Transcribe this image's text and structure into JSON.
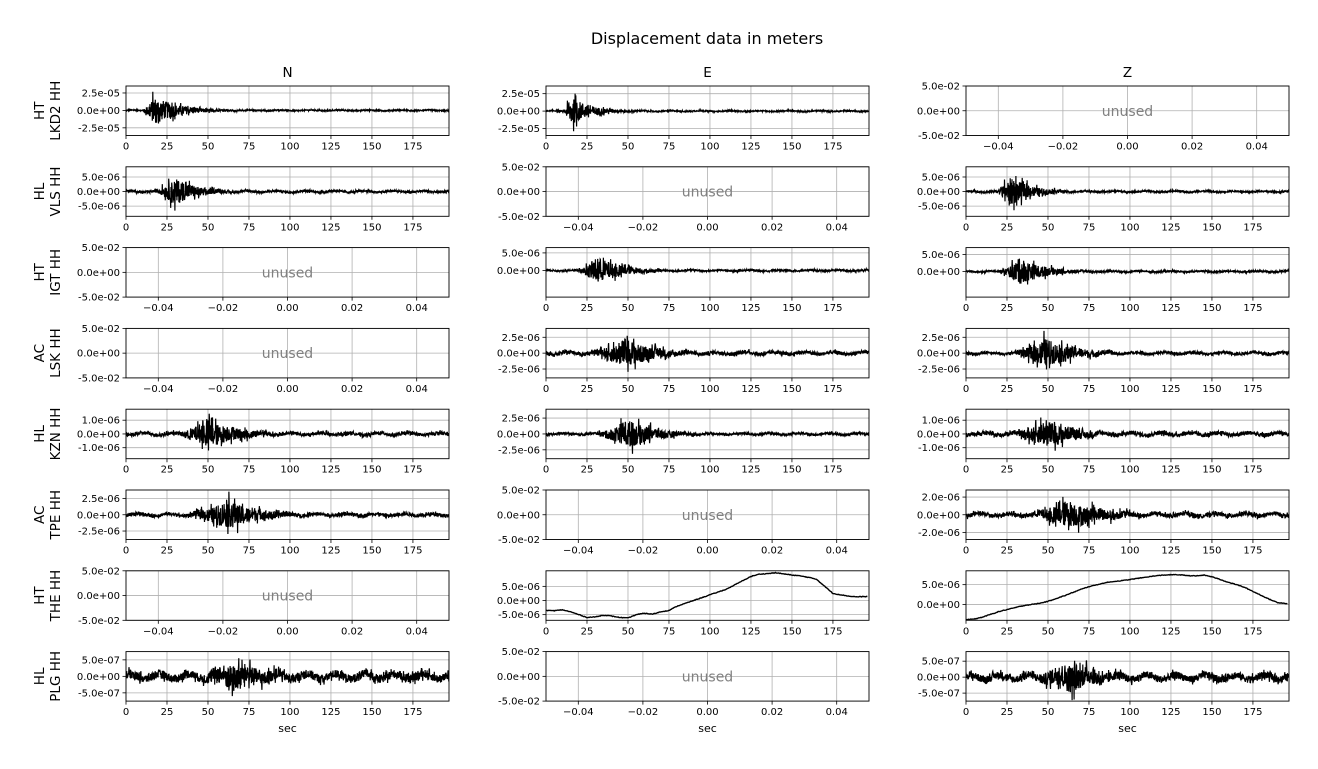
{
  "figure": {
    "title": "Displacement data in meters",
    "columns": [
      "N",
      "E",
      "Z"
    ],
    "xlabel": "sec",
    "unused_label": "unused"
  },
  "chart_data": {
    "type": "line",
    "title": "Displacement data in meters",
    "grid": true,
    "time_xlim": [
      0,
      197
    ],
    "time_xticks": [
      0,
      25,
      50,
      75,
      100,
      125,
      150,
      175
    ],
    "unused_xlim": [
      -0.05,
      0.05
    ],
    "unused_xtick_labels": [
      "−0.04",
      "−0.02",
      "0.00",
      "0.02",
      "0.04"
    ],
    "unused_ytick_labels": [
      "5.0e-02",
      "0.0e+00",
      "-5.0e-02"
    ],
    "rows": [
      {
        "net": "HT",
        "sta": "LKD2 HH",
        "panels": [
          {
            "component": "N",
            "status": "data",
            "ylim": [
              -3.6e-05,
              3.5e-05
            ],
            "ytick_labels": [
              "2.5e-05",
              "0.0e+00",
              "-2.5e-05"
            ],
            "yticks": [
              2.5e-05,
              0,
              -2.5e-05
            ],
            "peak": 3.3e-05,
            "onset": 8,
            "peak_time": 17,
            "decay": 16,
            "noise": 0.04
          },
          {
            "component": "E",
            "status": "data",
            "ylim": [
              -3.5e-05,
              3.6e-05
            ],
            "ytick_labels": [
              "2.5e-05",
              "0.0e+00",
              "-2.5e-05"
            ],
            "yticks": [
              2.5e-05,
              0,
              -2.5e-05
            ],
            "peak": 3.4e-05,
            "onset": 9,
            "peak_time": 15,
            "decay": 13,
            "noise": 0.04
          },
          {
            "component": "Z",
            "status": "unused"
          }
        ]
      },
      {
        "net": "HL",
        "sta": "VLS HH",
        "panels": [
          {
            "component": "N",
            "status": "data",
            "ylim": [
              -8.5e-06,
              8.5e-06
            ],
            "ytick_labels": [
              "5.0e-06",
              "0.0e+00",
              "-5.0e-06"
            ],
            "yticks": [
              5e-06,
              0,
              -5e-06
            ],
            "peak": 7.8e-06,
            "onset": 12,
            "peak_time": 30,
            "decay": 14,
            "noise": 0.08
          },
          {
            "component": "E",
            "status": "unused"
          },
          {
            "component": "Z",
            "status": "data",
            "ylim": [
              -8.5e-06,
              8.5e-06
            ],
            "ytick_labels": [
              "5.0e-06",
              "0.0e+00",
              "-5.0e-06"
            ],
            "yticks": [
              5e-06,
              0,
              -5e-06
            ],
            "peak": 8e-06,
            "onset": 14,
            "peak_time": 27,
            "decay": 14,
            "noise": 0.06
          }
        ]
      },
      {
        "net": "HT",
        "sta": "IGT HH",
        "panels": [
          {
            "component": "N",
            "status": "unused"
          },
          {
            "component": "E",
            "status": "data",
            "ylim": [
              -7.5e-06,
              6.5e-06
            ],
            "ytick_labels": [
              "5.0e-06",
              "0.0e+00"
            ],
            "yticks": [
              5e-06,
              0
            ],
            "peak": 6.3e-06,
            "onset": 15,
            "peak_time": 31,
            "decay": 16,
            "noise": 0.06
          },
          {
            "component": "Z",
            "status": "data",
            "ylim": [
              -7.5e-06,
              7e-06
            ],
            "ytick_labels": [
              "5.0e-06",
              "0.0e+00"
            ],
            "yticks": [
              5e-06,
              0
            ],
            "peak": 6.5e-06,
            "onset": 15,
            "peak_time": 33,
            "decay": 15,
            "noise": 0.06
          }
        ]
      },
      {
        "net": "AC",
        "sta": "LSK HH",
        "panels": [
          {
            "component": "N",
            "status": "unused"
          },
          {
            "component": "E",
            "status": "data",
            "ylim": [
              -3.9e-06,
              3.9e-06
            ],
            "ytick_labels": [
              "2.5e-06",
              "0.0e+00",
              "-2.5e-06"
            ],
            "yticks": [
              2.5e-06,
              0,
              -2.5e-06
            ],
            "peak": 3.8e-06,
            "onset": 18,
            "peak_time": 48,
            "decay": 20,
            "noise": 0.12
          },
          {
            "component": "Z",
            "status": "data",
            "ylim": [
              -3.9e-06,
              3.9e-06
            ],
            "ytick_labels": [
              "2.5e-06",
              "0.0e+00",
              "-2.5e-06"
            ],
            "yticks": [
              2.5e-06,
              0,
              -2.5e-06
            ],
            "peak": 3.7e-06,
            "onset": 20,
            "peak_time": 48,
            "decay": 20,
            "noise": 0.1
          }
        ]
      },
      {
        "net": "HL",
        "sta": "KZN HH",
        "panels": [
          {
            "component": "N",
            "status": "data",
            "ylim": [
              -1.8e-06,
              1.8e-06
            ],
            "ytick_labels": [
              "1.0e-06",
              "0.0e+00",
              "-1.0e-06"
            ],
            "yticks": [
              1e-06,
              0,
              -1e-06
            ],
            "peak": 1.7e-06,
            "onset": 22,
            "peak_time": 50,
            "decay": 20,
            "noise": 0.12
          },
          {
            "component": "E",
            "status": "data",
            "ylim": [
              -3.9e-06,
              3.9e-06
            ],
            "ytick_labels": [
              "2.5e-06",
              "0.0e+00",
              "-2.5e-06"
            ],
            "yticks": [
              2.5e-06,
              0,
              -2.5e-06
            ],
            "peak": 3.7e-06,
            "onset": 22,
            "peak_time": 50,
            "decay": 18,
            "noise": 0.08
          },
          {
            "component": "Z",
            "status": "data",
            "ylim": [
              -1.8e-06,
              1.8e-06
            ],
            "ytick_labels": [
              "1.0e-06",
              "0.0e+00",
              "-1.0e-06"
            ],
            "yticks": [
              1e-06,
              0,
              -1e-06
            ],
            "peak": 1.7e-06,
            "onset": 20,
            "peak_time": 49,
            "decay": 18,
            "noise": 0.14
          }
        ]
      },
      {
        "net": "AC",
        "sta": "TPE HH",
        "panels": [
          {
            "component": "N",
            "status": "data",
            "ylim": [
              -3.8e-06,
              3.8e-06
            ],
            "ytick_labels": [
              "2.5e-06",
              "0.0e+00",
              "-2.5e-06"
            ],
            "yticks": [
              2.5e-06,
              0,
              -2.5e-06
            ],
            "peak": 3.6e-06,
            "onset": 25,
            "peak_time": 62,
            "decay": 22,
            "noise": 0.12
          },
          {
            "component": "E",
            "status": "unused"
          },
          {
            "component": "Z",
            "status": "data",
            "ylim": [
              -2.8e-06,
              2.8e-06
            ],
            "ytick_labels": [
              "2.0e-06",
              "0.0e+00",
              "-2.0e-06"
            ],
            "yticks": [
              2e-06,
              0,
              -2e-06
            ],
            "peak": 2.6e-06,
            "onset": 25,
            "peak_time": 62,
            "decay": 25,
            "noise": 0.15
          }
        ]
      },
      {
        "net": "HT",
        "sta": "THE HH",
        "panels": [
          {
            "component": "N",
            "status": "unused"
          },
          {
            "component": "E",
            "status": "trend",
            "ylim": [
              -7e-06,
              1.05e-05
            ],
            "ytick_labels": [
              "5.0e-06",
              "0.0e+00",
              "-5.0e-06"
            ],
            "yticks": [
              5e-06,
              0,
              -5e-06
            ],
            "x": [
              0,
              5,
              10,
              15,
              20,
              25,
              30,
              35,
              40,
              45,
              50,
              55,
              60,
              65,
              70,
              75,
              80,
              85,
              90,
              95,
              100,
              105,
              110,
              115,
              120,
              125,
              130,
              135,
              140,
              145,
              150,
              155,
              160,
              165,
              170,
              175,
              180,
              185,
              190,
              196
            ],
            "y": [
              -3.5e-06,
              -3.6e-06,
              -3.3e-06,
              -4e-06,
              -5e-06,
              -6e-06,
              -5.8e-06,
              -5.2e-06,
              -5.5e-06,
              -6e-06,
              -6.2e-06,
              -5e-06,
              -4.5e-06,
              -4.8e-06,
              -4e-06,
              -3.5e-06,
              -2e-06,
              -1e-06,
              0,
              1e-06,
              2e-06,
              3e-06,
              4e-06,
              5.5e-06,
              7e-06,
              8.5e-06,
              9.3e-06,
              9.5e-06,
              9.8e-06,
              9.4e-06,
              9e-06,
              8.7e-06,
              8.2e-06,
              7.5e-06,
              5e-06,
              2.5e-06,
              2e-06,
              1.5e-06,
              1.3e-06,
              1.4e-06
            ]
          },
          {
            "component": "Z",
            "status": "trend",
            "ylim": [
              -4e-06,
              8.5e-06
            ],
            "ytick_labels": [
              "5.0e-06",
              "0.0e+00"
            ],
            "yticks": [
              5e-06,
              0
            ],
            "x": [
              0,
              5,
              10,
              15,
              20,
              25,
              30,
              35,
              40,
              45,
              50,
              55,
              60,
              65,
              70,
              75,
              80,
              85,
              90,
              95,
              100,
              105,
              110,
              115,
              120,
              125,
              130,
              135,
              140,
              145,
              150,
              155,
              160,
              165,
              170,
              175,
              180,
              185,
              190,
              196
            ],
            "y": [
              -3.8e-06,
              -3.7e-06,
              -3.2e-06,
              -2.5e-06,
              -1.8e-06,
              -1.3e-06,
              -8e-07,
              -3e-07,
              0,
              3e-07,
              8e-07,
              1.5e-06,
              2.2e-06,
              3e-06,
              3.8e-06,
              4.5e-06,
              5e-06,
              5.5e-06,
              5.8e-06,
              6e-06,
              6.3e-06,
              6.6e-06,
              6.9e-06,
              7.2e-06,
              7.4e-06,
              7.5e-06,
              7.5e-06,
              7.3e-06,
              7.2e-06,
              7.4e-06,
              7e-06,
              6.3e-06,
              5.6e-06,
              5e-06,
              4.3e-06,
              3.3e-06,
              2.3e-06,
              1.3e-06,
              5e-07,
              2e-07
            ]
          }
        ]
      },
      {
        "net": "HL",
        "sta": "PLG HH",
        "panels": [
          {
            "component": "N",
            "status": "data",
            "ylim": [
              -7.5e-07,
              7.5e-07
            ],
            "ytick_labels": [
              "5.0e-07",
              "0.0e+00",
              "-5.0e-07"
            ],
            "yticks": [
              5e-07,
              0,
              -5e-07
            ],
            "peak": 7e-07,
            "onset": 22,
            "peak_time": 65,
            "decay": 28,
            "noise": 0.3
          },
          {
            "component": "E",
            "status": "unused"
          },
          {
            "component": "Z",
            "status": "data",
            "ylim": [
              -7.5e-07,
              8e-07
            ],
            "ytick_labels": [
              "5.0e-07",
              "0.0e+00",
              "-5.0e-07"
            ],
            "yticks": [
              5e-07,
              0,
              -5e-07
            ],
            "peak": 7.5e-07,
            "onset": 22,
            "peak_time": 63,
            "decay": 24,
            "noise": 0.25
          }
        ]
      }
    ]
  }
}
